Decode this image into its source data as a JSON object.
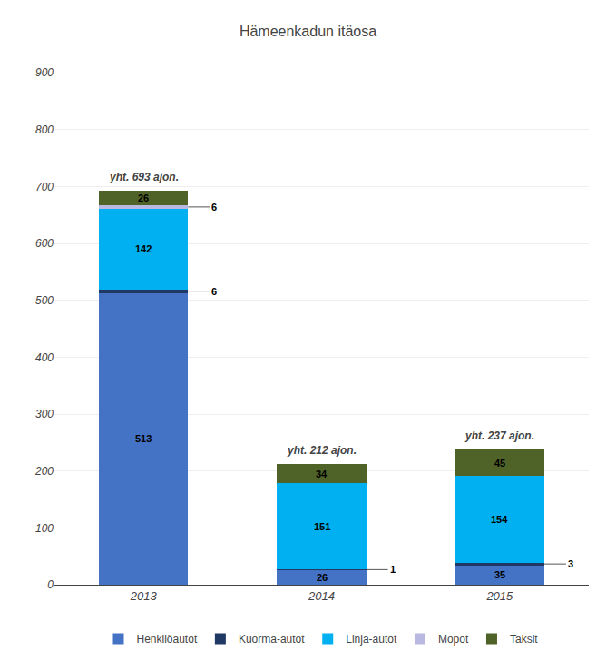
{
  "chart_data": {
    "type": "bar",
    "stacked": true,
    "title": "Hämeenkadun itäosa",
    "categories": [
      "2013",
      "2014",
      "2015"
    ],
    "series": [
      {
        "name": "Henkilöautot",
        "color": "#4472C4",
        "values": [
          513,
          26,
          35
        ]
      },
      {
        "name": "Kuorma-autot",
        "color": "#1F3864",
        "values": [
          6,
          1,
          3
        ]
      },
      {
        "name": "Linja-autot",
        "color": "#00B0F0",
        "values": [
          142,
          151,
          154
        ]
      },
      {
        "name": "Mopot",
        "color": "#B8B8E0",
        "values": [
          6,
          0,
          0
        ]
      },
      {
        "name": "Taksit",
        "color": "#4F6228",
        "values": [
          26,
          34,
          45
        ]
      }
    ],
    "ylim": [
      0,
      900
    ],
    "yticks": [
      0,
      100,
      200,
      300,
      400,
      500,
      600,
      700,
      800,
      900
    ],
    "grid": true,
    "legend": "bottom",
    "data_labels": true,
    "annotations": [
      {
        "category": "2013",
        "text": "yht. 693 ajon."
      },
      {
        "category": "2014",
        "text": "yht. 212 ajon."
      },
      {
        "category": "2015",
        "text": "yht. 237 ajon."
      }
    ]
  }
}
